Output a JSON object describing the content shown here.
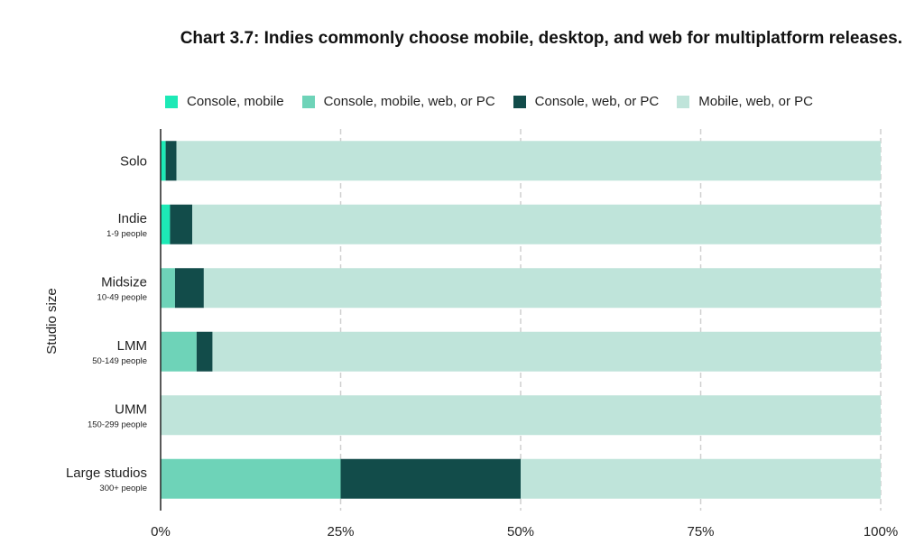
{
  "chart_data": {
    "type": "bar",
    "orientation": "horizontal",
    "stacked": true,
    "title": "Chart 3.7: Indies commonly choose mobile, desktop, and web for multiplatform releases.",
    "xlabel": "",
    "ylabel": "Studio size",
    "xlim": [
      0,
      100
    ],
    "xticks": [
      "0%",
      "25%",
      "50%",
      "75%",
      "100%"
    ],
    "xtick_values": [
      0,
      25,
      50,
      75,
      100
    ],
    "grid": "vertical-dashed",
    "legend_position": "top",
    "categories": [
      {
        "name": "Solo",
        "sub": ""
      },
      {
        "name": "Indie",
        "sub": "1-9 people"
      },
      {
        "name": "Midsize",
        "sub": "10-49 people"
      },
      {
        "name": "LMM",
        "sub": "50-149 people"
      },
      {
        "name": "UMM",
        "sub": "150-299 people"
      },
      {
        "name": "Large studios",
        "sub": "300+ people"
      }
    ],
    "series": [
      {
        "name": "Console, mobile",
        "color": "#1de9b6",
        "values": [
          0.7,
          1.3,
          0,
          0,
          0,
          0
        ]
      },
      {
        "name": "Console, mobile, web, or PC",
        "color": "#6ed3b8",
        "values": [
          0,
          0,
          2,
          5,
          0,
          25
        ]
      },
      {
        "name": "Console, web, or PC",
        "color": "#124c4a",
        "values": [
          1.5,
          3.1,
          4,
          2.2,
          0,
          25
        ]
      },
      {
        "name": "Mobile, web, or PC",
        "color": "#bfe4da",
        "values": [
          97.8,
          95.6,
          94,
          92.8,
          100,
          50
        ]
      }
    ]
  }
}
